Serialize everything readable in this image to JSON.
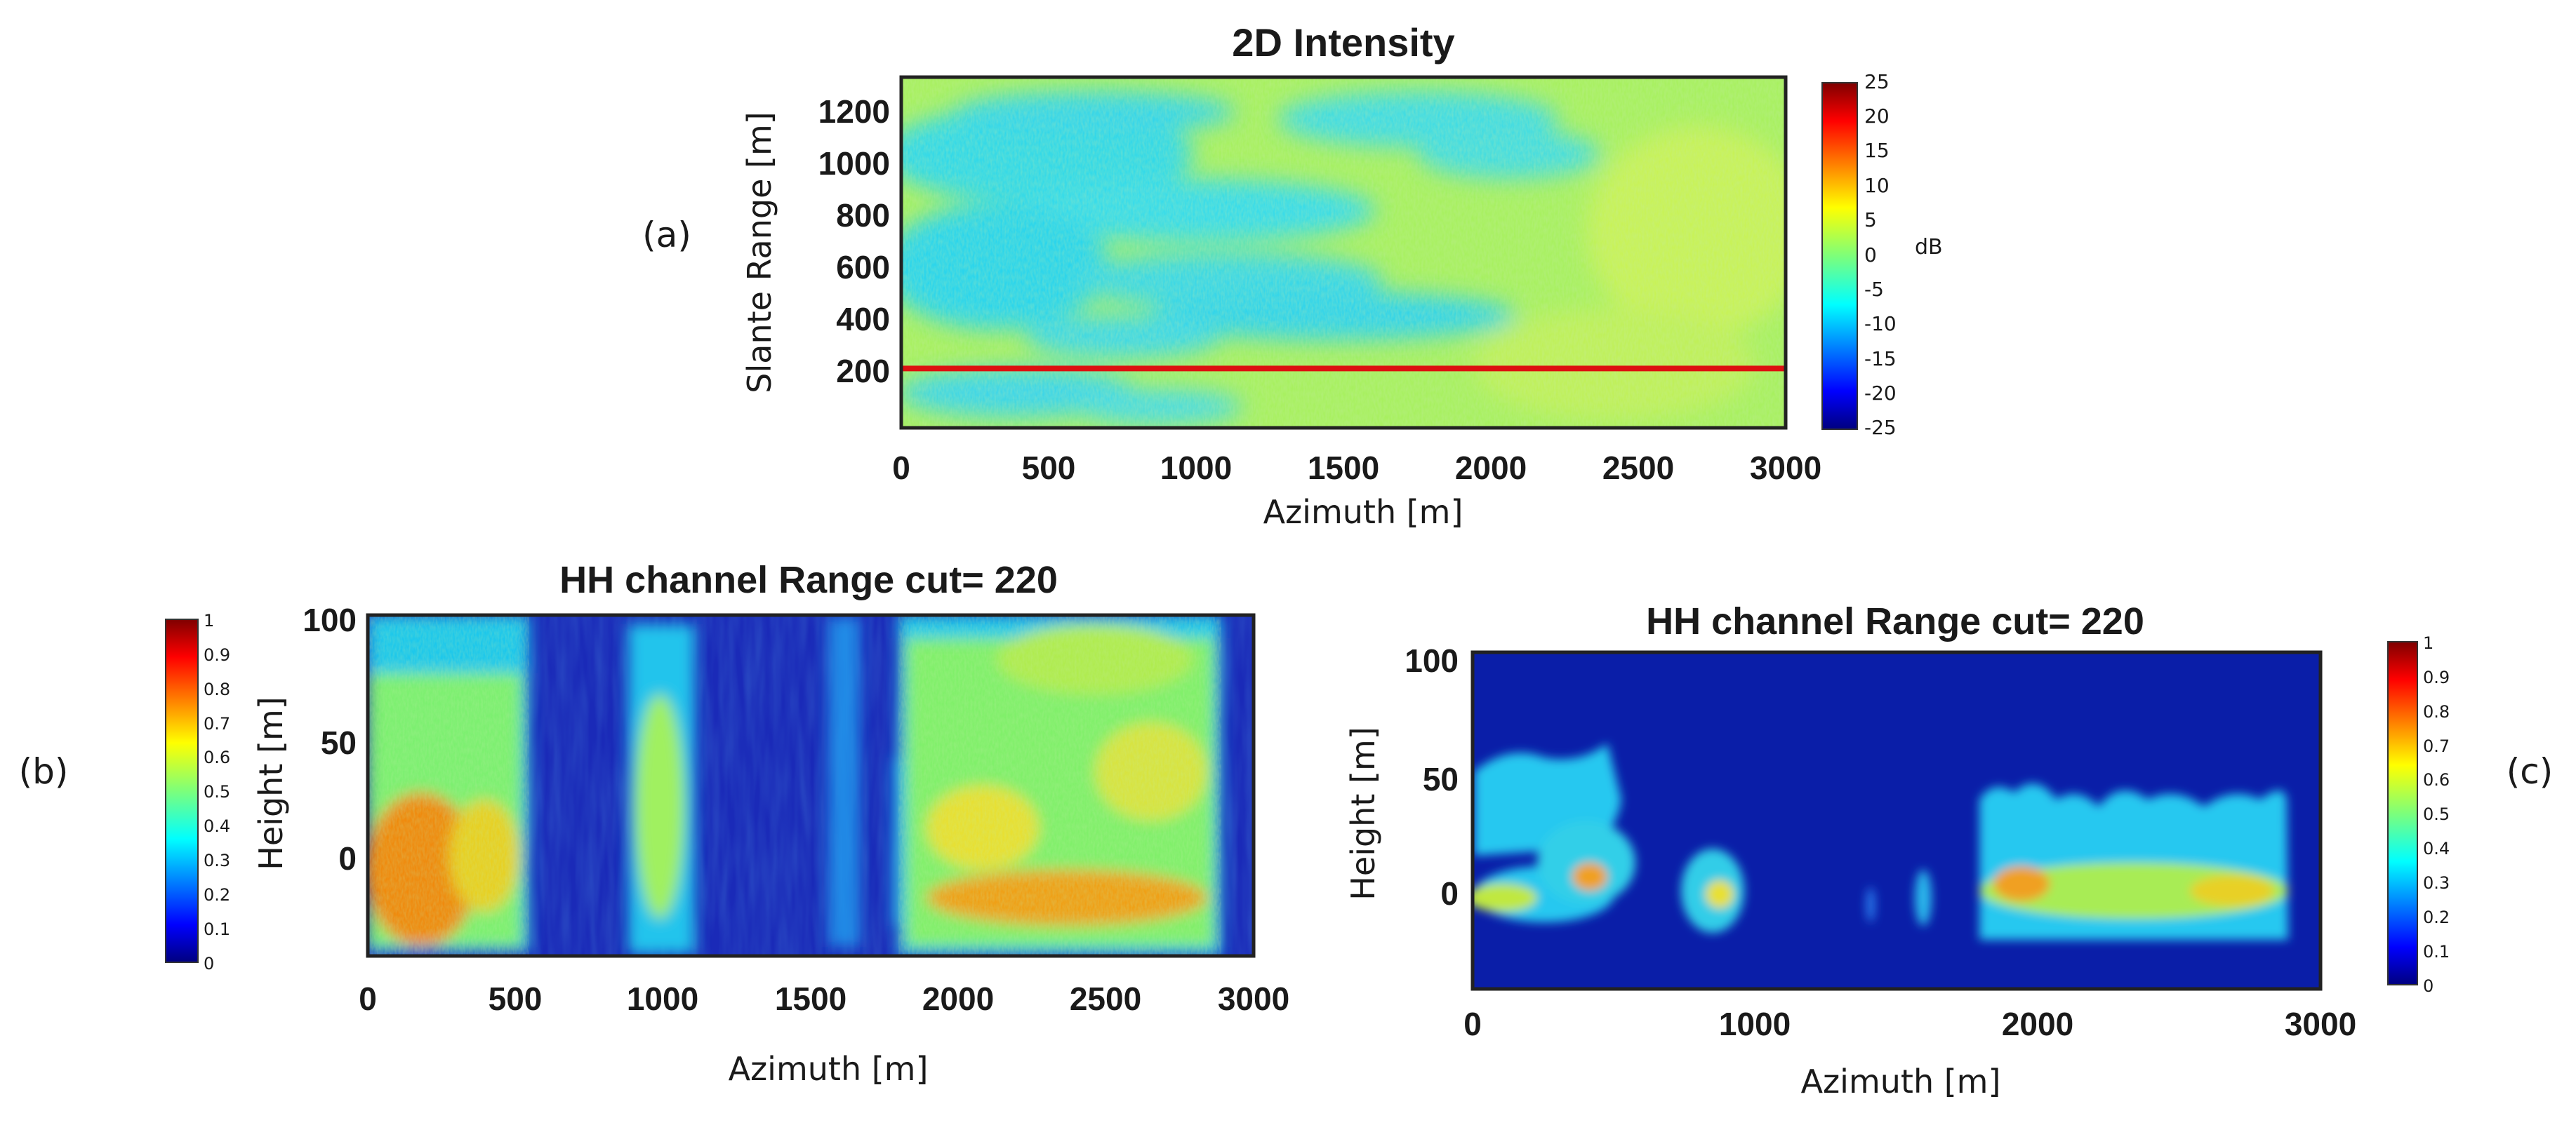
{
  "panels": [
    {
      "type": "heatmap",
      "panel_label": "(a)",
      "title": "2D Intensity",
      "xlabel": "Azimuth [m]",
      "ylabel": "Slante Range [m]",
      "xlim": [
        0,
        3000
      ],
      "ylim": [
        0,
        1300
      ],
      "xticks": [
        0,
        500,
        1000,
        1500,
        2000,
        2500,
        3000
      ],
      "yticks": [
        200,
        400,
        600,
        800,
        1000,
        1200
      ],
      "range_cut_marker": 220,
      "colorbar": {
        "min": -25,
        "max": 25,
        "ticks": [
          25,
          20,
          15,
          10,
          5,
          0,
          -5,
          -10,
          -15,
          -20,
          -25
        ],
        "unit": "dB"
      }
    },
    {
      "type": "heatmap",
      "panel_label": "(b)",
      "title": "HH channel Range cut=  220",
      "xlabel": "Azimuth [m]",
      "ylabel": "Height [m]",
      "xlim": [
        0,
        3000
      ],
      "ylim": [
        -40,
        100
      ],
      "xticks": [
        0,
        500,
        1000,
        1500,
        2000,
        2500,
        3000
      ],
      "yticks": [
        100,
        50,
        0
      ],
      "colorbar": {
        "min": 0,
        "max": 1,
        "ticks": [
          1,
          0.9,
          0.8,
          0.7,
          0.6,
          0.5,
          0.4,
          0.3,
          0.2,
          0.1,
          0
        ],
        "unit": ""
      }
    },
    {
      "type": "heatmap",
      "panel_label": "(c)",
      "title": "HH channel Range cut=  220",
      "xlabel": "Azimuth [m]",
      "ylabel": "Height [m]",
      "xlim": [
        0,
        3000
      ],
      "ylim": [
        -40,
        100
      ],
      "xticks": [
        0,
        1000,
        2000,
        3000
      ],
      "yticks": [
        100,
        50,
        0
      ],
      "colorbar": {
        "min": 0,
        "max": 1,
        "ticks": [
          1,
          0.9,
          0.8,
          0.7,
          0.6,
          0.5,
          0.4,
          0.3,
          0.2,
          0.1,
          0
        ],
        "unit": ""
      }
    }
  ],
  "chart_data": [
    {
      "type": "heatmap",
      "title": "2D Intensity",
      "xlabel": "Azimuth [m]",
      "ylabel": "Slante Range [m]",
      "xlim": [
        0,
        3000
      ],
      "ylim": [
        0,
        1300
      ],
      "colorbar_range_dB": [
        -25,
        25
      ],
      "typical_value_dB": 2,
      "low_regions": [
        {
          "x": [
            0,
            1900
          ],
          "y": [
            300,
            1250
          ],
          "value_dB": -8
        },
        {
          "x": [
            0,
            1200
          ],
          "y": [
            0,
            200
          ],
          "value_dB": -8
        }
      ],
      "annotation": "horizontal range cut line at 220 m"
    },
    {
      "type": "heatmap",
      "title": "HH channel Range cut=  220",
      "xlabel": "Azimuth [m]",
      "ylabel": "Height [m]",
      "colorbar_range": [
        0,
        1
      ],
      "blobs": [
        {
          "x": [
            0,
            500
          ],
          "y": [
            -40,
            100
          ],
          "center_height": 0,
          "value": 0.75
        },
        {
          "x": [
            870,
            1080
          ],
          "y": [
            -40,
            100
          ],
          "center_height": 20,
          "value": 0.5
        },
        {
          "x": [
            1400,
            1600
          ],
          "y": [
            -40,
            100
          ],
          "center_height": 30,
          "value": 0.35
        },
        {
          "x": [
            1780,
            2880
          ],
          "y": [
            -40,
            100
          ],
          "center_height": -10,
          "value": 0.7
        }
      ]
    },
    {
      "type": "heatmap",
      "title": "HH channel Range cut=  220",
      "xlabel": "Azimuth [m]",
      "ylabel": "Height [m]",
      "colorbar_range": [
        0,
        1
      ],
      "blobs": [
        {
          "x": [
            0,
            550
          ],
          "y": [
            -25,
            45
          ],
          "center_height": 0,
          "value": 0.55
        },
        {
          "x": [
            870,
            1070
          ],
          "y": [
            -25,
            25
          ],
          "center_height": 0,
          "value": 0.55
        },
        {
          "x": [
            1620,
            1660
          ],
          "y": [
            -20,
            10
          ],
          "center_height": 0,
          "value": 0.3
        },
        {
          "x": [
            1790,
            2900
          ],
          "y": [
            -25,
            45
          ],
          "center_height": 0,
          "value": 0.55
        }
      ]
    }
  ]
}
